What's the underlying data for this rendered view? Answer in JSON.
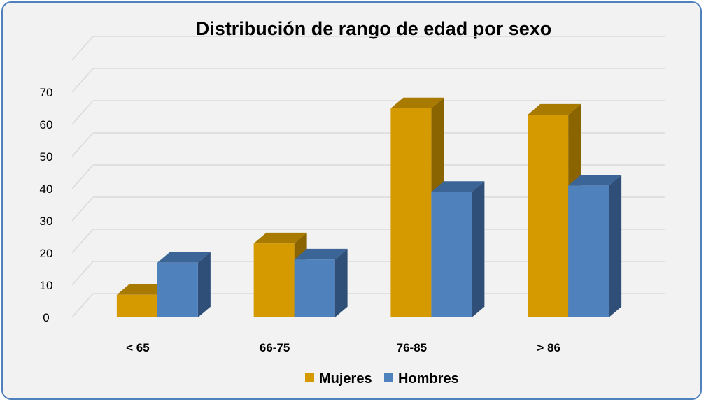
{
  "chart_data": {
    "type": "bar",
    "title": "Distribución de rango de edad por sexo",
    "categories": [
      "< 65",
      "66-75",
      "76-85",
      "> 86"
    ],
    "series": [
      {
        "name": "Mujeres",
        "values": [
          7,
          23,
          65,
          63
        ],
        "color": "#d49a00",
        "top_color": "#a87a00",
        "side_color": "#8a6400"
      },
      {
        "name": "Hombres",
        "values": [
          17,
          18,
          39,
          41
        ],
        "color": "#4f81bd",
        "top_color": "#3b6596",
        "side_color": "#2f4f78"
      }
    ],
    "y_ticks": [
      0,
      10,
      20,
      30,
      40,
      50,
      60,
      70
    ],
    "ylim": [
      0,
      80
    ],
    "grid": true,
    "legend_position": "bottom",
    "xlabel": "",
    "ylabel": ""
  }
}
